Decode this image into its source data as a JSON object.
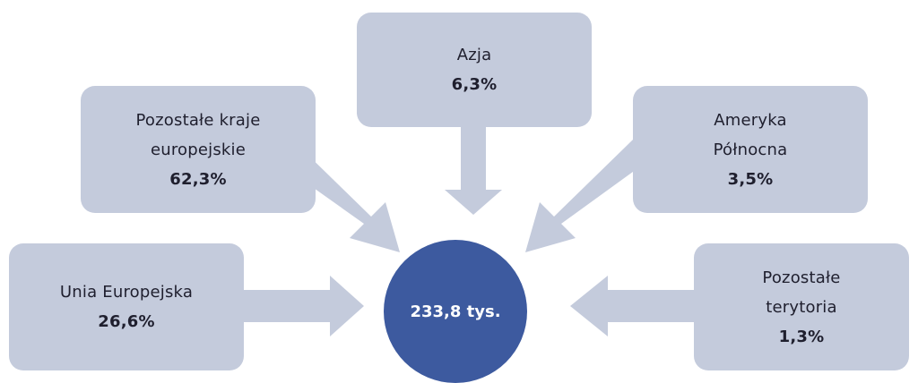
{
  "center": {
    "label": "233,8 tys."
  },
  "regions": {
    "asia": {
      "lines": [
        "Azja"
      ],
      "value": "6,3%"
    },
    "other_europe": {
      "lines": [
        "Pozostałe kraje",
        "europejskie"
      ],
      "value": "62,3%"
    },
    "north_america": {
      "lines": [
        "Ameryka",
        "Północna"
      ],
      "value": "3,5%"
    },
    "eu": {
      "lines": [
        "Unia Europejska"
      ],
      "value": "26,6%"
    },
    "other_territories": {
      "lines": [
        "Pozostałe",
        "terytoria"
      ],
      "value": "1,3%"
    }
  },
  "colors": {
    "box": "#c4cbdc",
    "arrow": "#c4cbdc",
    "center": "#3d5a9f",
    "text": "#1f1f2e",
    "center_text": "#ffffff"
  }
}
